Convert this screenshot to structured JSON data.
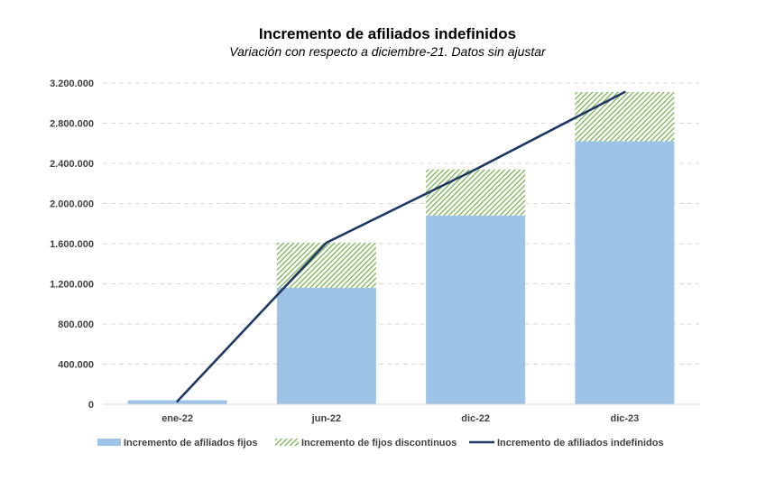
{
  "chart_data": {
    "type": "bar",
    "title": "Incremento de afiliados indefinidos",
    "subtitle": "Variación con respecto a diciembre-21. Datos sin ajustar",
    "categories": [
      "ene-22",
      "jun-22",
      "dic-22",
      "dic-23"
    ],
    "ylim": [
      0,
      3200000
    ],
    "yticks": [
      0,
      400000,
      800000,
      1200000,
      1600000,
      2000000,
      2400000,
      2800000,
      3200000
    ],
    "ytick_labels": [
      "0",
      "400.000",
      "800.000",
      "1.200.000",
      "1.600.000",
      "2.000.000",
      "2.400.000",
      "2.800.000",
      "3.200.000"
    ],
    "grid": true,
    "legend_position": "bottom",
    "series": [
      {
        "name": "Incremento de afiliados fijos",
        "kind": "bar",
        "stacked": true,
        "color": "#9dc3e6",
        "values": [
          40000,
          1160000,
          1880000,
          2620000
        ]
      },
      {
        "name": "Incremento de fijos discontinuos",
        "kind": "bar",
        "stacked": true,
        "pattern": "diagonal-hatch",
        "color": "#70ad47",
        "values": [
          0,
          450000,
          460000,
          490000
        ]
      },
      {
        "name": "Incremento de afiliados indefinidos",
        "kind": "line",
        "color": "#203864",
        "values": [
          30000,
          1610000,
          2340000,
          3110000
        ]
      }
    ]
  }
}
